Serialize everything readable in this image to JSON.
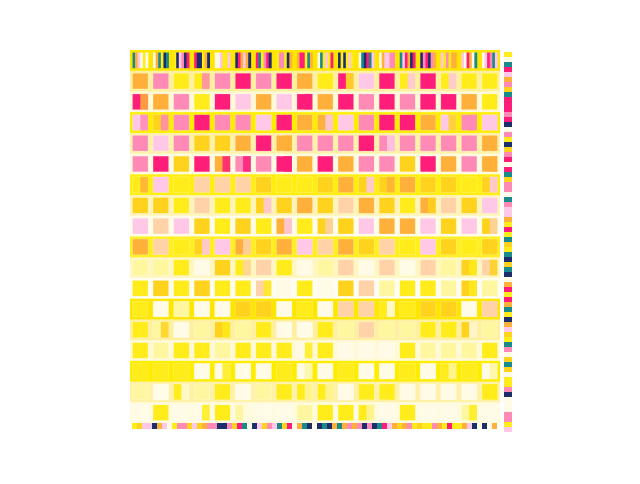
{
  "palette": {
    "background": "#ffffff",
    "yellow": "#ffec1a",
    "yellow_pale": "#fff6a0",
    "hot_pink": "#ff1d7a",
    "pink": "#ff8ab6",
    "light_pink": "#ffc8e6",
    "orange": "#ffb03a",
    "gold": "#ffd21e",
    "peach": "#ffd2a8",
    "cream": "#fffbe6",
    "teal": "#1a8a8a",
    "navy": "#1c2f6a"
  },
  "band_tints": [
    "#ffe600",
    "#fff0a0",
    "#fff9d8",
    "#ffed00",
    "#fff2a8",
    "#fffbe0",
    "#ffee10",
    "#fff4b8",
    "#fffce8",
    "#ffef20",
    "#fff6c0",
    "#fffdf0"
  ],
  "icons": {
    "right_strip": "multicolor-barcode-strip",
    "bottom_strip": "multicolor-barcode-strip"
  }
}
